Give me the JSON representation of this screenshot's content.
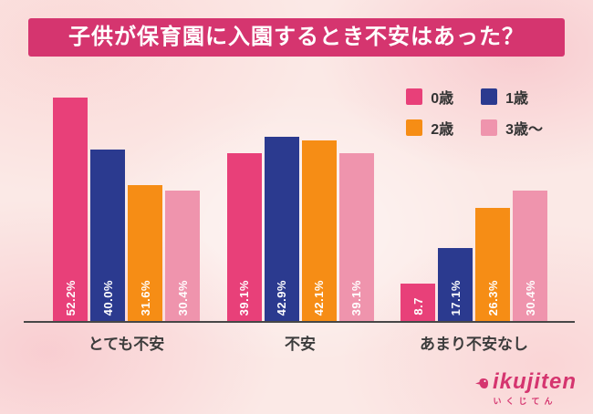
{
  "title": "子供が保育園に入園するとき不安はあった？",
  "legend": [
    {
      "label": "0歳",
      "color": "#e84079"
    },
    {
      "label": "1歳",
      "color": "#2b3a8f"
    },
    {
      "label": "2歳",
      "color": "#f68d15"
    },
    {
      "label": "3歳〜",
      "color": "#ef94ad"
    }
  ],
  "chart_data": {
    "type": "bar",
    "categories": [
      "とても不安",
      "不安",
      "あまり不安なし"
    ],
    "series": [
      {
        "name": "0歳",
        "color": "#e84079",
        "values": [
          52.2,
          39.1,
          8.7
        ],
        "labels": [
          "52.2%",
          "39.1%",
          "8.7"
        ]
      },
      {
        "name": "1歳",
        "color": "#2b3a8f",
        "values": [
          40.0,
          42.9,
          17.1
        ],
        "labels": [
          "40.0%",
          "42.9%",
          "17.1%"
        ]
      },
      {
        "name": "2歳",
        "color": "#f68d15",
        "values": [
          31.6,
          42.1,
          26.3
        ],
        "labels": [
          "31.6%",
          "42.1%",
          "26.3%"
        ]
      },
      {
        "name": "3歳〜",
        "color": "#ef94ad",
        "values": [
          30.4,
          39.1,
          30.4
        ],
        "labels": [
          "30.4%",
          "39.1%",
          "30.4%"
        ]
      }
    ],
    "title": "子供が保育園に入園するとき不安はあった？",
    "xlabel": "",
    "ylabel": "",
    "ylim": [
      0,
      55
    ],
    "grid": false,
    "legend_position": "top-right"
  },
  "logo": {
    "name": "ikujiten",
    "subtitle": "いくじてん"
  }
}
